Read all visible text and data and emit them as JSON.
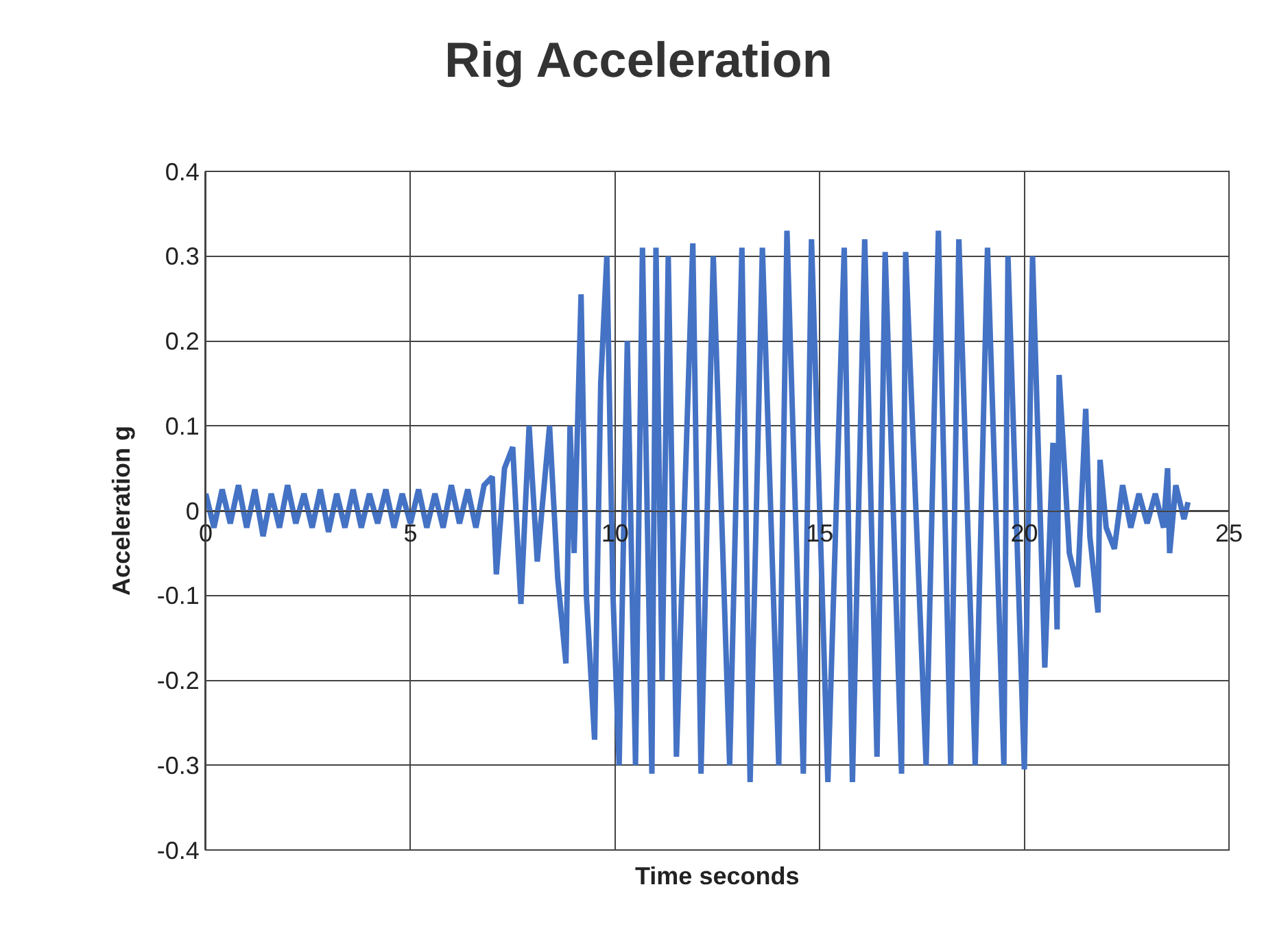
{
  "chart_data": {
    "type": "line",
    "title": "Rig Acceleration",
    "xlabel": "Time seconds",
    "ylabel": "Acceleration g",
    "xlim": [
      0,
      25
    ],
    "xticks": [
      0,
      5,
      10,
      15,
      20,
      25
    ],
    "ylim": [
      -0.4,
      0.4
    ],
    "yticks": [
      -0.4,
      -0.3,
      -0.2,
      -0.1,
      0,
      0.1,
      0.2,
      0.3,
      0.4
    ],
    "grid": true,
    "marker": "none",
    "line_style": "solid",
    "series": [
      {
        "color": "#4472c4",
        "x": [
          0,
          0.2,
          0.4,
          0.6,
          0.8,
          1.0,
          1.2,
          1.4,
          1.6,
          1.8,
          2.0,
          2.2,
          2.4,
          2.6,
          2.8,
          3.0,
          3.2,
          3.4,
          3.6,
          3.8,
          4.0,
          4.2,
          4.4,
          4.6,
          4.8,
          5.0,
          5.2,
          5.4,
          5.6,
          5.8,
          6.0,
          6.2,
          6.4,
          6.6,
          6.8,
          7.0,
          7.1,
          7.3,
          7.5,
          7.7,
          7.9,
          8.1,
          8.4,
          8.6,
          8.8,
          8.9,
          9.0,
          9.17,
          9.3,
          9.5,
          9.65,
          9.8,
          9.95,
          10.1,
          10.3,
          10.5,
          10.67,
          10.9,
          11.0,
          11.15,
          11.3,
          11.5,
          11.9,
          12.1,
          12.4,
          12.8,
          13.1,
          13.3,
          13.6,
          14.0,
          14.2,
          14.6,
          14.8,
          15.2,
          15.6,
          15.8,
          16.1,
          16.4,
          16.6,
          17.0,
          17.1,
          17.6,
          17.9,
          18.2,
          18.4,
          18.8,
          19.1,
          19.5,
          19.6,
          20.0,
          20.2,
          20.5,
          20.7,
          20.8,
          20.85,
          21.1,
          21.3,
          21.5,
          21.6,
          21.8,
          21.85,
          22.0,
          22.2,
          22.4,
          22.6,
          22.8,
          23.0,
          23.2,
          23.4,
          23.5,
          23.55,
          23.7,
          23.9,
          24.0
        ],
        "values": [
          0.02,
          -0.02,
          0.025,
          -0.015,
          0.03,
          -0.02,
          0.025,
          -0.03,
          0.02,
          -0.02,
          0.03,
          -0.015,
          0.02,
          -0.02,
          0.025,
          -0.025,
          0.02,
          -0.02,
          0.025,
          -0.02,
          0.02,
          -0.015,
          0.025,
          -0.02,
          0.02,
          -0.015,
          0.025,
          -0.02,
          0.02,
          -0.02,
          0.03,
          -0.015,
          0.025,
          -0.02,
          0.03,
          0.04,
          -0.075,
          0.05,
          0.075,
          -0.11,
          0.1,
          -0.06,
          0.1,
          -0.08,
          -0.18,
          0.1,
          -0.05,
          0.255,
          -0.1,
          -0.27,
          0.15,
          0.3,
          -0.1,
          -0.3,
          0.2,
          -0.3,
          0.31,
          -0.31,
          0.31,
          -0.2,
          0.3,
          -0.29,
          0.315,
          -0.31,
          0.3,
          -0.3,
          0.31,
          -0.32,
          0.31,
          -0.3,
          0.33,
          -0.31,
          0.32,
          -0.32,
          0.31,
          -0.32,
          0.32,
          -0.29,
          0.305,
          -0.31,
          0.305,
          -0.3,
          0.33,
          -0.3,
          0.32,
          -0.3,
          0.31,
          -0.3,
          0.3,
          -0.305,
          0.3,
          -0.185,
          0.08,
          -0.14,
          0.16,
          -0.05,
          -0.09,
          0.12,
          -0.03,
          -0.12,
          0.06,
          -0.02,
          -0.045,
          0.03,
          -0.02,
          0.02,
          -0.015,
          0.02,
          -0.02,
          0.05,
          -0.05,
          0.03,
          -0.01,
          0.01
        ]
      }
    ]
  }
}
